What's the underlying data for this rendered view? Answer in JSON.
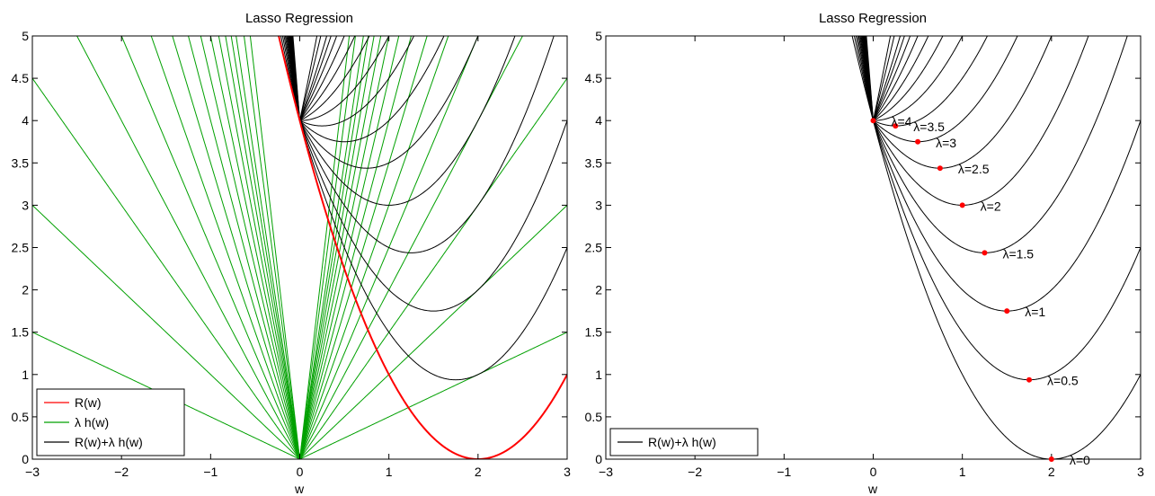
{
  "chart_data": [
    {
      "type": "line",
      "title": "Lasso Regression",
      "xlabel": "w",
      "ylabel": "",
      "xlim": [
        -3,
        3
      ],
      "ylim": [
        0,
        5
      ],
      "xticks": [
        "−3",
        "−2",
        "−1",
        "0",
        "1",
        "2",
        "3"
      ],
      "yticks": [
        "0",
        "0.5",
        "1",
        "1.5",
        "2",
        "2.5",
        "3",
        "3.5",
        "4",
        "4.5",
        "5"
      ],
      "grid": false,
      "legend_position": "bottom-left",
      "legend": [
        "R(w)",
        "λ h(w)",
        "R(w)+λ h(w)"
      ],
      "lambdas": [
        0.5,
        1,
        1.5,
        2,
        2.5,
        3,
        3.5,
        4
      ],
      "series": [
        {
          "name": "R(w)",
          "formula": "(w-2)^2",
          "color": "#ff0000"
        },
        {
          "name": "λ h(w)",
          "formula": "lambda*|w|",
          "color": "#00a000"
        },
        {
          "name": "R(w)+λ h(w)",
          "formula": "(w-2)^2 + lambda*|w|",
          "color": "#000000"
        }
      ]
    },
    {
      "type": "line",
      "title": "Lasso Regression",
      "xlabel": "w",
      "ylabel": "",
      "xlim": [
        -3,
        3
      ],
      "ylim": [
        0,
        5
      ],
      "xticks": [
        "−3",
        "−2",
        "−1",
        "0",
        "1",
        "2",
        "3"
      ],
      "yticks": [
        "0",
        "0.5",
        "1",
        "1.5",
        "2",
        "2.5",
        "3",
        "3.5",
        "4",
        "4.5",
        "5"
      ],
      "grid": false,
      "legend_position": "bottom-left",
      "legend": [
        "R(w)+λ h(w)"
      ],
      "lambdas": [
        0,
        0.5,
        1,
        1.5,
        2,
        2.5,
        3,
        3.5,
        4
      ],
      "minima": [
        {
          "label": "λ=0",
          "w": 2.0,
          "y": 0.0
        },
        {
          "label": "λ=0.5",
          "w": 1.75,
          "y": 0.9375
        },
        {
          "label": "λ=1",
          "w": 1.5,
          "y": 1.75
        },
        {
          "label": "λ=1.5",
          "w": 1.25,
          "y": 2.4375
        },
        {
          "label": "λ=2",
          "w": 1.0,
          "y": 3.0
        },
        {
          "label": "λ=2.5",
          "w": 0.75,
          "y": 3.4375
        },
        {
          "label": "λ=3",
          "w": 0.5,
          "y": 3.75
        },
        {
          "label": "λ=3.5",
          "w": 0.25,
          "y": 3.9375
        },
        {
          "label": "λ=4",
          "w": 0.0,
          "y": 4.0
        }
      ],
      "marker_color": "#ff0000",
      "series": [
        {
          "name": "R(w)+λ h(w)",
          "formula": "(w-2)^2 + lambda*|w|",
          "color": "#000000"
        }
      ]
    }
  ]
}
